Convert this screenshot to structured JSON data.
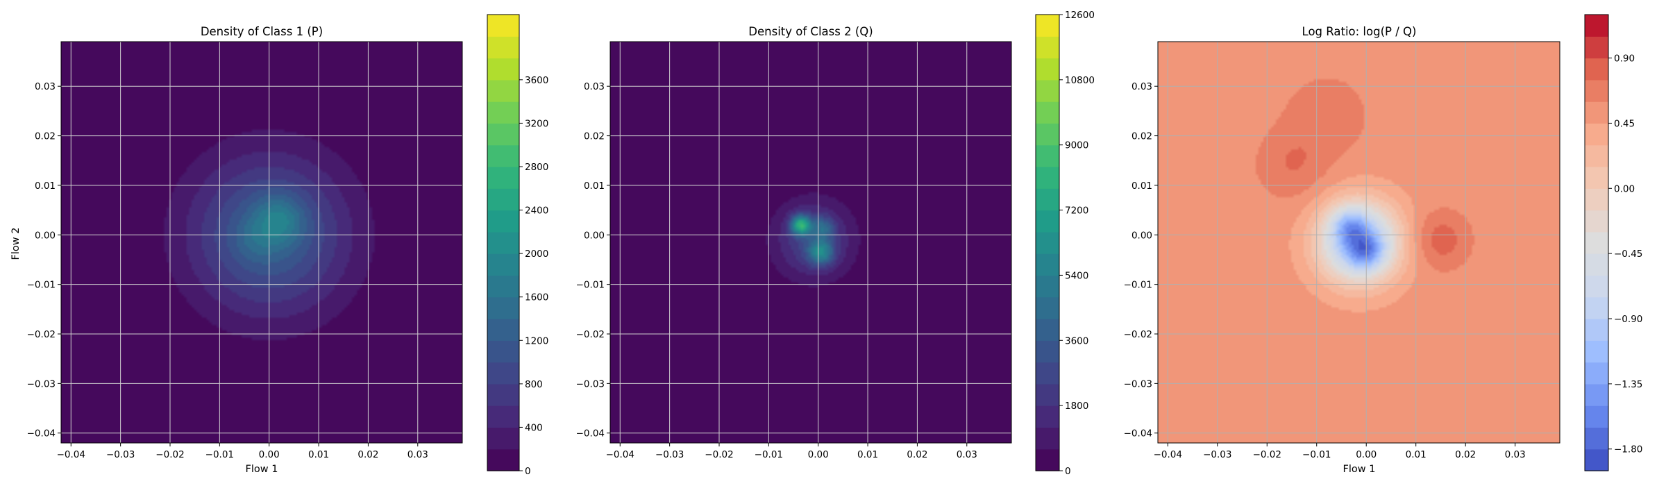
{
  "figure": {
    "background": "#ffffff"
  },
  "chart_data": [
    {
      "type": "heatmap",
      "title": "Density of Class 1 (P)",
      "xlabel": "Flow 1",
      "ylabel": "Flow 2",
      "xlim": [
        -0.042,
        0.039
      ],
      "ylim": [
        -0.042,
        0.039
      ],
      "xticks": [
        -0.04,
        -0.03,
        -0.02,
        -0.01,
        0.0,
        0.01,
        0.02,
        0.03
      ],
      "xtick_labels": [
        "−0.04",
        "−0.03",
        "−0.02",
        "−0.01",
        "0.00",
        "0.01",
        "0.02",
        "0.03"
      ],
      "yticks": [
        -0.04,
        -0.03,
        -0.02,
        -0.01,
        0.0,
        0.01,
        0.02,
        0.03
      ],
      "ytick_labels": [
        "−0.04",
        "−0.03",
        "−0.02",
        "−0.01",
        "0.00",
        "0.01",
        "0.02",
        "0.03"
      ],
      "grid": true,
      "colormap": "viridis",
      "color_stops": [
        "#440154",
        "#482878",
        "#3e4989",
        "#31688e",
        "#26828e",
        "#1f9e89",
        "#35b779",
        "#6ece58",
        "#b5de2b",
        "#fde725"
      ],
      "colorbar": {
        "range": [
          0,
          4200
        ],
        "visible_max": 3600,
        "levels": 21,
        "ticks": [
          0,
          400,
          800,
          1200,
          1600,
          2000,
          2400,
          2800,
          3200,
          3600
        ],
        "tick_labels": [
          "0",
          "400",
          "800",
          "1200",
          "1600",
          "2000",
          "2400",
          "2800",
          "3200",
          "3600"
        ]
      },
      "peaks": [
        {
          "x": 0.0,
          "y": 0.0,
          "sx": 0.011,
          "sy": 0.011,
          "value": 1300
        },
        {
          "x": 0.002,
          "y": 0.003,
          "sx": 0.0035,
          "sy": 0.0035,
          "value": 700
        },
        {
          "x": -0.003,
          "y": -0.001,
          "sx": 0.003,
          "sy": 0.003,
          "value": 250
        }
      ]
    },
    {
      "type": "heatmap",
      "title": "Density of Class 2 (Q)",
      "xlabel": "",
      "ylabel": "",
      "xlim": [
        -0.042,
        0.039
      ],
      "ylim": [
        -0.042,
        0.039
      ],
      "xticks": [
        -0.04,
        -0.03,
        -0.02,
        -0.01,
        0.0,
        0.01,
        0.02,
        0.03
      ],
      "xtick_labels": [
        "−0.04",
        "−0.03",
        "−0.02",
        "−0.01",
        "0.00",
        "0.01",
        "0.02",
        "0.03"
      ],
      "yticks": [
        -0.04,
        -0.03,
        -0.02,
        -0.01,
        0.0,
        0.01,
        0.02,
        0.03
      ],
      "ytick_labels": [
        "−0.04",
        "−0.03",
        "−0.02",
        "−0.01",
        "0.00",
        "0.01",
        "0.02",
        "0.03"
      ],
      "grid": true,
      "colormap": "viridis",
      "color_stops": [
        "#440154",
        "#482878",
        "#3e4989",
        "#31688e",
        "#26828e",
        "#1f9e89",
        "#35b779",
        "#6ece58",
        "#b5de2b",
        "#fde725"
      ],
      "colorbar": {
        "range": [
          0,
          12600
        ],
        "visible_max": 12600,
        "levels": 21,
        "ticks": [
          0,
          1800,
          3600,
          5400,
          7200,
          9000,
          10800,
          12600
        ],
        "tick_labels": [
          "0",
          "1800",
          "3600",
          "5400",
          "7200",
          "9000",
          "10800",
          "12600"
        ]
      },
      "peaks": [
        {
          "x": -0.001,
          "y": -0.001,
          "sx": 0.0055,
          "sy": 0.0055,
          "value": 2600
        },
        {
          "x": -0.0035,
          "y": 0.002,
          "sx": 0.0014,
          "sy": 0.0014,
          "value": 6500
        },
        {
          "x": 0.0005,
          "y": -0.0035,
          "sx": 0.0018,
          "sy": 0.0018,
          "value": 4200
        },
        {
          "x": 0.001,
          "y": 0.0015,
          "sx": 0.0015,
          "sy": 0.0015,
          "value": 2500
        }
      ]
    },
    {
      "type": "heatmap",
      "title": "Log Ratio: log(P / Q)",
      "xlabel": "Flow 1",
      "ylabel": "",
      "xlim": [
        -0.042,
        0.039
      ],
      "ylim": [
        -0.042,
        0.039
      ],
      "xticks": [
        -0.04,
        -0.03,
        -0.02,
        -0.01,
        0.0,
        0.01,
        0.02,
        0.03
      ],
      "xtick_labels": [
        "−0.04",
        "−0.03",
        "−0.02",
        "−0.01",
        "0.00",
        "0.01",
        "0.02",
        "0.03"
      ],
      "yticks": [
        -0.04,
        -0.03,
        -0.02,
        -0.01,
        0.0,
        0.01,
        0.02,
        0.03
      ],
      "ytick_labels": [
        "−0.04",
        "−0.03",
        "−0.02",
        "−0.01",
        "0.00",
        "0.01",
        "0.02",
        "0.03"
      ],
      "grid": true,
      "colormap": "coolwarm",
      "color_stops": [
        "#3b4cc0",
        "#6788ee",
        "#9abbff",
        "#c9d7f0",
        "#dddddd",
        "#f2cbb7",
        "#f7a889",
        "#e26952",
        "#b40426"
      ],
      "colorbar": {
        "range": [
          -1.95,
          1.2
        ],
        "visible_max": 1.2,
        "levels": 21,
        "ticks": [
          -1.8,
          -1.35,
          -0.9,
          -0.45,
          0.0,
          0.45,
          0.9
        ],
        "tick_labels": [
          "−1.80",
          "−1.35",
          "−0.90",
          "−0.45",
          "0.00",
          "0.45",
          "0.90"
        ]
      },
      "base_value": 0.52,
      "peaks": [
        {
          "x": -0.0015,
          "y": -0.0015,
          "sx": 0.0055,
          "sy": 0.0055,
          "value": -1.8
        },
        {
          "x": -0.0035,
          "y": 0.002,
          "sx": 0.0025,
          "sy": 0.0025,
          "value": -0.6
        },
        {
          "x": 0.0,
          "y": -0.0035,
          "sx": 0.0025,
          "sy": 0.0025,
          "value": -0.6
        },
        {
          "x": 0.015,
          "y": -0.001,
          "sx": 0.004,
          "sy": 0.004,
          "value": 0.32
        },
        {
          "x": -0.015,
          "y": 0.014,
          "sx": 0.005,
          "sy": 0.005,
          "value": 0.22
        },
        {
          "x": -0.008,
          "y": 0.024,
          "sx": 0.006,
          "sy": 0.006,
          "value": 0.18
        }
      ]
    }
  ]
}
